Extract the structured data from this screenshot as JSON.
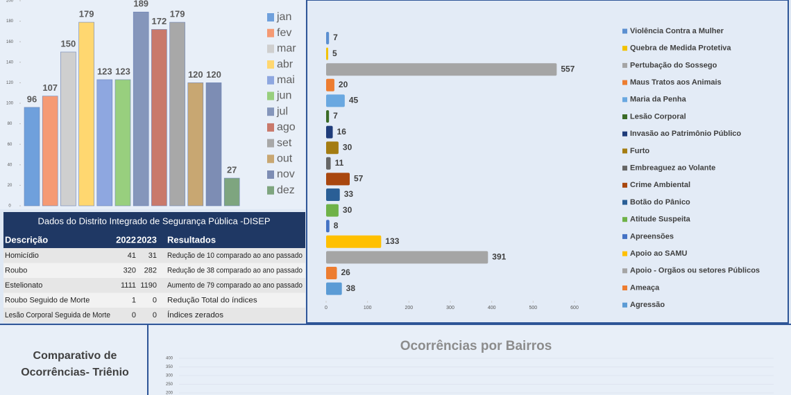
{
  "chart_data": [
    {
      "type": "bar",
      "categories": [
        "jan",
        "fev",
        "mar",
        "abr",
        "mai",
        "jun",
        "jul",
        "ago",
        "set",
        "out",
        "nov",
        "dez"
      ],
      "values": [
        96,
        107,
        150,
        179,
        123,
        123,
        189,
        172,
        179,
        120,
        120,
        27
      ],
      "colors": [
        "#6fa0dc",
        "#f59a74",
        "#cfcfcf",
        "#ffd770",
        "#8ea7e0",
        "#98cf7e",
        "#8596bb",
        "#c9796b",
        "#a8a8a8",
        "#c8a772",
        "#7d8db4",
        "#7ea57f"
      ],
      "ylim": [
        0,
        200
      ],
      "yticks": [
        0,
        20,
        40,
        60,
        80,
        100,
        120,
        140,
        160,
        180,
        200
      ]
    },
    {
      "type": "barh",
      "categories": [
        "Violência Contra a Mulher",
        "Quebra de Medida Protetiva",
        "Pertubação do Sossego",
        "Maus Tratos aos Animais",
        "Maria da Penha",
        "Lesão Corporal",
        "Invasão ao Patrimônio Público",
        "Furto",
        "Embreaguez ao Volante",
        "Crime Ambiental",
        "Botão do Pânico",
        "Atitude Suspeita",
        "Apreensões",
        "Apoio ao SAMU",
        "Apoio - Orgãos ou setores Públicos",
        "Ameaça",
        "Agressão"
      ],
      "values": [
        7,
        5,
        557,
        20,
        45,
        7,
        16,
        30,
        11,
        57,
        33,
        30,
        8,
        133,
        391,
        26,
        38
      ],
      "colors": [
        "#5b8fd0",
        "#f2c200",
        "#a5a5a5",
        "#ed7d31",
        "#6aa8e0",
        "#3b6b26",
        "#1f3c7a",
        "#a47c12",
        "#666666",
        "#a9470f",
        "#2a5f96",
        "#6fb248",
        "#4472c4",
        "#ffc000",
        "#a5a5a5",
        "#ed7d31",
        "#5b9bd5"
      ],
      "xlim": [
        0,
        600
      ],
      "xticks": [
        0,
        100,
        200,
        300,
        400,
        500,
        600
      ]
    },
    {
      "type": "area",
      "title": "Ocorrências por Bairros",
      "ylim": [
        0,
        400
      ],
      "yticks": [
        200,
        250,
        300,
        350,
        400
      ]
    }
  ],
  "table": {
    "title": "Dados do Distrito Integrado de Segurança Pública -DISEP",
    "header": [
      "Descrição",
      "2022",
      "2023",
      "Resultados"
    ],
    "rows": [
      [
        "Homicídio",
        41,
        31,
        "Redução de 10 comparado ao ano passado"
      ],
      [
        "Roubo",
        320,
        282,
        "Redução de 38 comparado ao ano passado"
      ],
      [
        "Estelionato",
        1111,
        1190,
        "Aumento de 79 comparado ao ano passado"
      ],
      [
        "Roubo Seguido de Morte",
        1,
        0,
        "Redução Total do índices"
      ],
      [
        "Lesão Corporal Seguida de Morte",
        0,
        0,
        "Índices zerados"
      ]
    ]
  },
  "comparativo": {
    "title": "Comparativo de Ocorrências- Triênio"
  }
}
